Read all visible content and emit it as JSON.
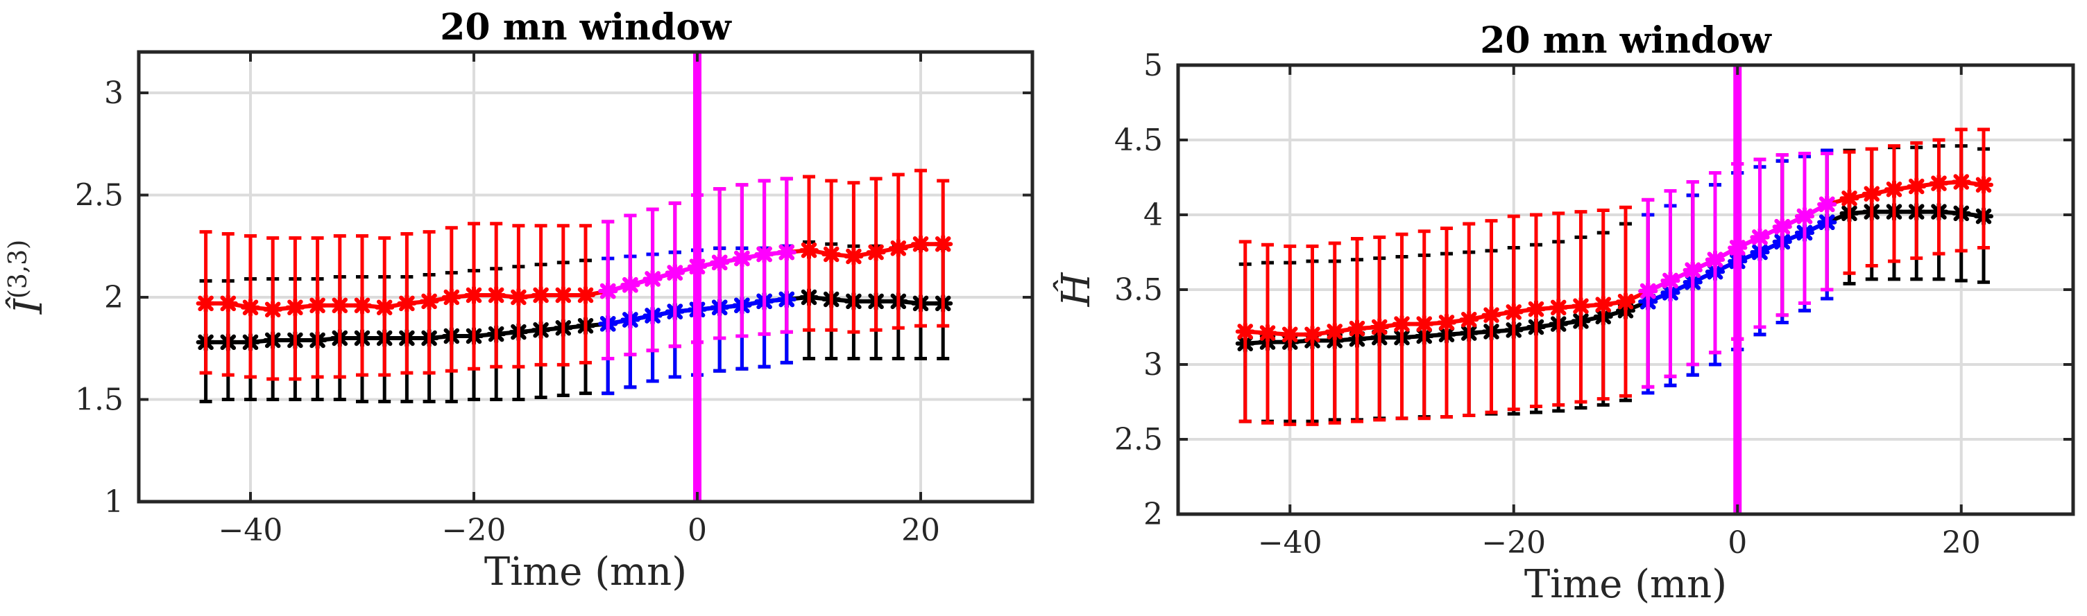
{
  "colors": {
    "black": "#000000",
    "blue": "#0000ff",
    "magenta": "#ff00ff",
    "red": "#ff0000"
  },
  "chart_data": [
    {
      "type": "line",
      "title": "20 mn window",
      "xlabel": "Time (mn)",
      "ylabel": "Î",
      "ylabel_superscript": "(3,3)",
      "xlim": [
        -50,
        30
      ],
      "ylim": [
        1,
        3.2
      ],
      "xticks": [
        -40,
        -20,
        0,
        20
      ],
      "yticks": [
        1,
        1.5,
        2,
        2.5,
        3
      ],
      "xtick_labels": [
        "−40",
        "−20",
        "0",
        "20"
      ],
      "ytick_labels": [
        "1",
        "1.5",
        "2",
        "2.5",
        "3"
      ],
      "event_line_x": 0,
      "series": [
        {
          "name": "lower-black",
          "color": "black",
          "x": [
            -44,
            -42,
            -40,
            -38,
            -36,
            -34,
            -32,
            -30,
            -28,
            -26,
            -24,
            -22,
            -20,
            -18,
            -16,
            -14,
            -12,
            -10,
            -8,
            -6,
            -4,
            -2,
            0,
            2,
            4,
            6,
            8,
            10,
            12,
            14,
            16,
            18,
            20,
            22
          ],
          "y": [
            1.78,
            1.78,
            1.78,
            1.79,
            1.79,
            1.79,
            1.8,
            1.8,
            1.8,
            1.8,
            1.8,
            1.81,
            1.81,
            1.82,
            1.83,
            1.84,
            1.85,
            1.86,
            1.87,
            1.89,
            1.91,
            1.93,
            1.94,
            1.95,
            1.96,
            1.98,
            1.99,
            2.0,
            1.99,
            1.98,
            1.98,
            1.98,
            1.97,
            1.97
          ],
          "err_lo": [
            1.49,
            1.5,
            1.5,
            1.5,
            1.5,
            1.5,
            1.5,
            1.49,
            1.49,
            1.49,
            1.49,
            1.49,
            1.5,
            1.5,
            1.5,
            1.51,
            1.52,
            1.53,
            1.53,
            1.56,
            1.59,
            1.61,
            1.62,
            1.64,
            1.65,
            1.66,
            1.68,
            1.7,
            1.7,
            1.7,
            1.7,
            1.7,
            1.7,
            1.7
          ],
          "err_hi": [
            2.08,
            2.08,
            2.09,
            2.09,
            2.09,
            2.09,
            2.1,
            2.1,
            2.1,
            2.1,
            2.11,
            2.12,
            2.13,
            2.14,
            2.15,
            2.16,
            2.17,
            2.18,
            2.19,
            2.2,
            2.21,
            2.22,
            2.23,
            2.24,
            2.24,
            2.24,
            2.25,
            2.27,
            2.26,
            2.25,
            2.25,
            2.25,
            2.24,
            2.24
          ]
        },
        {
          "name": "lower-blue",
          "color": "blue",
          "x": [
            -8,
            -6,
            -4,
            -2,
            0,
            2,
            4,
            6,
            8
          ],
          "y": [
            1.87,
            1.89,
            1.91,
            1.93,
            1.94,
            1.95,
            1.96,
            1.98,
            1.99
          ],
          "err_lo": [
            1.53,
            1.56,
            1.59,
            1.61,
            1.62,
            1.64,
            1.65,
            1.66,
            1.68
          ],
          "err_hi": [
            2.19,
            2.2,
            2.21,
            2.22,
            2.23,
            2.24,
            2.24,
            2.24,
            2.25
          ]
        },
        {
          "name": "upper-red",
          "color": "red",
          "x": [
            -44,
            -42,
            -40,
            -38,
            -36,
            -34,
            -32,
            -30,
            -28,
            -26,
            -24,
            -22,
            -20,
            -18,
            -16,
            -14,
            -12,
            -10,
            -8,
            -6,
            -4,
            -2,
            0,
            2,
            4,
            6,
            8,
            10,
            12,
            14,
            16,
            18,
            20,
            22
          ],
          "y": [
            1.97,
            1.97,
            1.95,
            1.94,
            1.95,
            1.96,
            1.96,
            1.96,
            1.95,
            1.97,
            1.98,
            2.0,
            2.01,
            2.01,
            2.0,
            2.01,
            2.01,
            2.01,
            2.03,
            2.06,
            2.09,
            2.12,
            2.15,
            2.17,
            2.19,
            2.21,
            2.22,
            2.23,
            2.21,
            2.2,
            2.22,
            2.24,
            2.26,
            2.26
          ],
          "err_lo": [
            1.63,
            1.62,
            1.61,
            1.6,
            1.6,
            1.61,
            1.61,
            1.62,
            1.62,
            1.63,
            1.63,
            1.64,
            1.65,
            1.66,
            1.66,
            1.67,
            1.67,
            1.68,
            1.7,
            1.72,
            1.74,
            1.76,
            1.78,
            1.8,
            1.81,
            1.82,
            1.83,
            1.84,
            1.84,
            1.83,
            1.84,
            1.85,
            1.86,
            1.86
          ],
          "err_hi": [
            2.32,
            2.31,
            2.3,
            2.29,
            2.29,
            2.29,
            2.3,
            2.3,
            2.29,
            2.31,
            2.32,
            2.34,
            2.36,
            2.36,
            2.35,
            2.35,
            2.35,
            2.35,
            2.37,
            2.4,
            2.43,
            2.46,
            2.5,
            2.53,
            2.55,
            2.57,
            2.58,
            2.59,
            2.57,
            2.56,
            2.58,
            2.6,
            2.62,
            2.57
          ]
        },
        {
          "name": "upper-magenta",
          "color": "magenta",
          "x": [
            -8,
            -6,
            -4,
            -2,
            0,
            2,
            4,
            6,
            8
          ],
          "y": [
            2.03,
            2.06,
            2.09,
            2.12,
            2.15,
            2.17,
            2.19,
            2.21,
            2.22
          ],
          "err_lo": [
            1.7,
            1.72,
            1.74,
            1.76,
            1.78,
            1.8,
            1.81,
            1.82,
            1.83
          ],
          "err_hi": [
            2.37,
            2.4,
            2.43,
            2.46,
            2.5,
            2.53,
            2.55,
            2.57,
            2.58
          ]
        }
      ]
    },
    {
      "type": "line",
      "title": "20 mn window",
      "xlabel": "Time (mn)",
      "ylabel": "Ĥ",
      "ylabel_superscript": "",
      "xlim": [
        -50,
        30
      ],
      "ylim": [
        2,
        5
      ],
      "xticks": [
        -40,
        -20,
        0,
        20
      ],
      "yticks": [
        2,
        2.5,
        3,
        3.5,
        4,
        4.5,
        5
      ],
      "xtick_labels": [
        "−40",
        "−20",
        "0",
        "20"
      ],
      "ytick_labels": [
        "2",
        "2.5",
        "3",
        "3.5",
        "4",
        "4.5",
        "5"
      ],
      "event_line_x": 0,
      "series": [
        {
          "name": "lower-black",
          "color": "black",
          "x": [
            -44,
            -42,
            -40,
            -38,
            -36,
            -34,
            -32,
            -30,
            -28,
            -26,
            -24,
            -22,
            -20,
            -18,
            -16,
            -14,
            -12,
            -10,
            -8,
            -6,
            -4,
            -2,
            0,
            2,
            4,
            6,
            8,
            10,
            12,
            14,
            16,
            18,
            20,
            22
          ],
          "y": [
            3.14,
            3.15,
            3.15,
            3.16,
            3.16,
            3.17,
            3.18,
            3.18,
            3.19,
            3.2,
            3.21,
            3.22,
            3.23,
            3.25,
            3.27,
            3.29,
            3.32,
            3.36,
            3.42,
            3.48,
            3.55,
            3.62,
            3.69,
            3.75,
            3.82,
            3.88,
            3.95,
            4.01,
            4.02,
            4.02,
            4.02,
            4.02,
            4.01,
            3.99
          ],
          "err_lo": [
            2.62,
            2.62,
            2.62,
            2.62,
            2.63,
            2.63,
            2.64,
            2.64,
            2.65,
            2.65,
            2.66,
            2.67,
            2.67,
            2.68,
            2.69,
            2.71,
            2.73,
            2.76,
            2.81,
            2.86,
            2.93,
            3.0,
            3.1,
            3.2,
            3.28,
            3.36,
            3.44,
            3.54,
            3.57,
            3.57,
            3.57,
            3.57,
            3.56,
            3.55
          ],
          "err_hi": [
            3.67,
            3.68,
            3.68,
            3.69,
            3.69,
            3.7,
            3.71,
            3.72,
            3.73,
            3.74,
            3.75,
            3.76,
            3.78,
            3.8,
            3.82,
            3.85,
            3.88,
            3.94,
            4.0,
            4.06,
            4.13,
            4.2,
            4.28,
            4.32,
            4.36,
            4.39,
            4.43,
            4.43,
            4.44,
            4.45,
            4.45,
            4.46,
            4.46,
            4.44
          ]
        },
        {
          "name": "lower-blue",
          "color": "blue",
          "x": [
            -8,
            -6,
            -4,
            -2,
            0,
            2,
            4,
            6,
            8
          ],
          "y": [
            3.42,
            3.48,
            3.55,
            3.62,
            3.69,
            3.75,
            3.82,
            3.88,
            3.95
          ],
          "err_lo": [
            2.81,
            2.86,
            2.93,
            3.0,
            3.1,
            3.2,
            3.28,
            3.36,
            3.44
          ],
          "err_hi": [
            4.0,
            4.06,
            4.13,
            4.2,
            4.28,
            4.32,
            4.36,
            4.39,
            4.43
          ]
        },
        {
          "name": "upper-red",
          "color": "red",
          "x": [
            -44,
            -42,
            -40,
            -38,
            -36,
            -34,
            -32,
            -30,
            -28,
            -26,
            -24,
            -22,
            -20,
            -18,
            -16,
            -14,
            -12,
            -10,
            -8,
            -6,
            -4,
            -2,
            0,
            2,
            4,
            6,
            8,
            10,
            12,
            14,
            16,
            18,
            20,
            22
          ],
          "y": [
            3.22,
            3.21,
            3.2,
            3.2,
            3.22,
            3.24,
            3.25,
            3.27,
            3.27,
            3.28,
            3.3,
            3.33,
            3.35,
            3.37,
            3.38,
            3.39,
            3.4,
            3.42,
            3.49,
            3.56,
            3.63,
            3.7,
            3.78,
            3.85,
            3.92,
            3.99,
            4.07,
            4.11,
            4.14,
            4.17,
            4.19,
            4.21,
            4.22,
            4.2
          ],
          "err_lo": [
            2.62,
            2.61,
            2.6,
            2.6,
            2.61,
            2.62,
            2.63,
            2.64,
            2.64,
            2.65,
            2.66,
            2.68,
            2.7,
            2.72,
            2.73,
            2.75,
            2.77,
            2.79,
            2.85,
            2.92,
            3.0,
            3.08,
            3.17,
            3.25,
            3.33,
            3.41,
            3.5,
            3.61,
            3.66,
            3.69,
            3.71,
            3.74,
            3.76,
            3.78
          ],
          "err_hi": [
            3.82,
            3.8,
            3.79,
            3.79,
            3.81,
            3.84,
            3.85,
            3.87,
            3.89,
            3.91,
            3.94,
            3.96,
            3.99,
            4.0,
            4.01,
            4.02,
            4.03,
            4.05,
            4.1,
            4.16,
            4.22,
            4.28,
            4.34,
            4.37,
            4.4,
            4.41,
            4.41,
            4.42,
            4.44,
            4.46,
            4.48,
            4.5,
            4.57,
            4.57
          ]
        },
        {
          "name": "upper-magenta",
          "color": "magenta",
          "x": [
            -8,
            -6,
            -4,
            -2,
            0,
            2,
            4,
            6,
            8
          ],
          "y": [
            3.49,
            3.56,
            3.63,
            3.7,
            3.78,
            3.85,
            3.92,
            3.99,
            4.07
          ],
          "err_lo": [
            2.85,
            2.92,
            3.0,
            3.08,
            3.17,
            3.25,
            3.33,
            3.41,
            3.5
          ],
          "err_hi": [
            4.1,
            4.16,
            4.22,
            4.28,
            4.34,
            4.37,
            4.4,
            4.41,
            4.41
          ]
        }
      ]
    }
  ]
}
